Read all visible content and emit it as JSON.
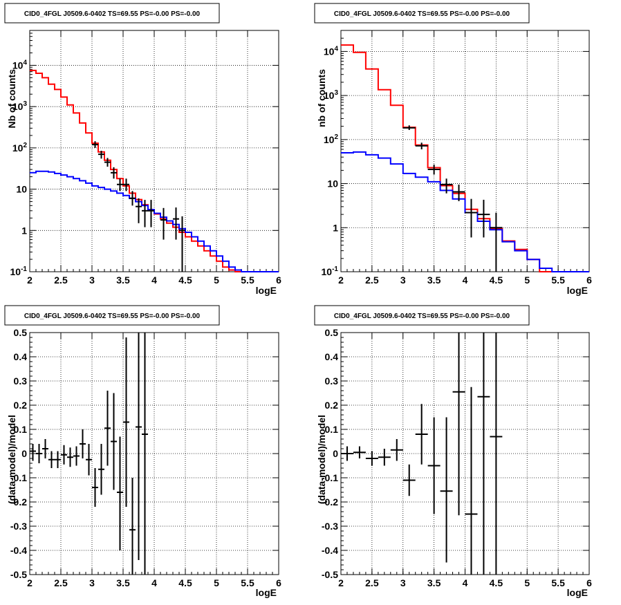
{
  "chart_data": [
    {
      "type": "histogram",
      "title": "CID0_4FGL J0509.6-0402 TS=69.55 PS=-0.00 PS=-0.00",
      "xlabel": "logE",
      "ylabel": "Nb of counts",
      "xlim": [
        2,
        6
      ],
      "ylim": [
        0.1,
        70000
      ],
      "yscale": "log",
      "grid": true,
      "x_ticks": [
        "2",
        "2.5",
        "3",
        "3.5",
        "4",
        "4.5",
        "5",
        "5.5",
        "6"
      ],
      "y_ticks": [
        {
          "v": 0.1,
          "label": "10^-1"
        },
        {
          "v": 1,
          "label": "1"
        },
        {
          "v": 10,
          "label": "10"
        },
        {
          "v": 100,
          "label": "10^2"
        },
        {
          "v": 1000,
          "label": "10^3"
        },
        {
          "v": 10000,
          "label": "10^4"
        }
      ],
      "bin_edges": [
        2.0,
        2.1,
        2.2,
        2.3,
        2.4,
        2.5,
        2.6,
        2.7,
        2.8,
        2.9,
        3.0,
        3.1,
        3.2,
        3.3,
        3.4,
        3.5,
        3.6,
        3.7,
        3.8,
        3.9,
        4.0,
        4.1,
        4.2,
        4.3,
        4.4,
        4.5,
        4.6,
        4.7,
        4.8,
        4.9,
        5.0,
        5.1,
        5.2,
        5.3,
        5.4,
        5.5,
        5.6,
        5.7,
        5.8,
        5.9,
        6.0
      ],
      "series": [
        {
          "color": "#ff0000",
          "values": [
            7500,
            6400,
            5000,
            3500,
            2600,
            1700,
            1100,
            700,
            400,
            230,
            130,
            80,
            50,
            30,
            18,
            12,
            8,
            5.6,
            4.2,
            3.2,
            2.5,
            1.9,
            1.5,
            1.2,
            0.9,
            0.7,
            0.55,
            0.42,
            0.32,
            0.24,
            0.18,
            0.13,
            0.11,
            0.1,
            0.1,
            0.1,
            0.1,
            0.1,
            0.1,
            0.1
          ]
        },
        {
          "color": "#0000ff",
          "values": [
            25,
            27,
            27,
            26,
            24,
            22,
            20,
            18,
            16,
            14,
            12,
            11,
            10,
            9,
            8,
            7,
            6,
            5,
            4,
            3.2,
            2.6,
            2.1,
            1.7,
            1.4,
            1.1,
            0.9,
            0.7,
            0.55,
            0.42,
            0.32,
            0.24,
            0.18,
            0.13,
            0.11,
            0.1,
            0.1,
            0.1,
            0.1,
            0.1,
            0.1
          ]
        }
      ],
      "points": [
        {
          "x": 3.05,
          "y": 120,
          "lo": 100,
          "hi": 145
        },
        {
          "x": 3.15,
          "y": 70,
          "lo": 55,
          "hi": 85
        },
        {
          "x": 3.25,
          "y": 45,
          "lo": 35,
          "hi": 57
        },
        {
          "x": 3.35,
          "y": 25,
          "lo": 18,
          "hi": 34
        },
        {
          "x": 3.45,
          "y": 13,
          "lo": 9,
          "hi": 18
        },
        {
          "x": 3.55,
          "y": 13,
          "lo": 9,
          "hi": 18
        },
        {
          "x": 3.65,
          "y": 6,
          "lo": 4,
          "hi": 9
        },
        {
          "x": 3.75,
          "y": 3.8,
          "lo": 1.5,
          "hi": 6
        },
        {
          "x": 3.85,
          "y": 3,
          "lo": 1.2,
          "hi": 5.5
        },
        {
          "x": 3.95,
          "y": 3,
          "lo": 1.2,
          "hi": 5.5
        },
        {
          "x": 4.15,
          "y": 1.8,
          "lo": 0.6,
          "hi": 3.5
        },
        {
          "x": 4.35,
          "y": 1.9,
          "lo": 0.6,
          "hi": 3.6
        },
        {
          "x": 4.45,
          "y": 1.0,
          "lo": 0.1,
          "hi": 2.2
        }
      ]
    },
    {
      "type": "histogram",
      "title": "CID0_4FGL J0509.6-0402 TS=69.55 PS=-0.00 PS=-0.00",
      "xlabel": "logE",
      "ylabel": "nb of counts",
      "xlim": [
        2,
        6
      ],
      "ylim": [
        0.1,
        30000
      ],
      "yscale": "log",
      "grid": true,
      "x_ticks": [
        "2",
        "2.5",
        "3",
        "3.5",
        "4",
        "4.5",
        "5",
        "5.5",
        "6"
      ],
      "y_ticks": [
        {
          "v": 0.1,
          "label": "10^-1"
        },
        {
          "v": 1,
          "label": "1"
        },
        {
          "v": 10,
          "label": "10"
        },
        {
          "v": 100,
          "label": "10^2"
        },
        {
          "v": 1000,
          "label": "10^3"
        },
        {
          "v": 10000,
          "label": "10^4"
        }
      ],
      "bin_edges": [
        2.0,
        2.2,
        2.4,
        2.6,
        2.8,
        3.0,
        3.2,
        3.4,
        3.6,
        3.8,
        4.0,
        4.2,
        4.4,
        4.6,
        4.8,
        5.0,
        5.2,
        5.4,
        5.6,
        5.8,
        6.0
      ],
      "series": [
        {
          "color": "#ff0000",
          "values": [
            14000,
            9500,
            4000,
            1350,
            600,
            190,
            75,
            23,
            9,
            6,
            2.6,
            1.6,
            0.95,
            0.5,
            0.32,
            0.19,
            0.1,
            0.1,
            0.1,
            0.1
          ]
        },
        {
          "color": "#0000ff",
          "values": [
            50,
            52,
            45,
            38,
            28,
            17,
            14,
            11,
            7,
            4.5,
            2.2,
            1.4,
            0.9,
            0.48,
            0.3,
            0.19,
            0.12,
            0.1,
            0.1,
            0.1
          ]
        }
      ],
      "points": [
        {
          "x": 3.1,
          "y": 185,
          "lo": 165,
          "hi": 210
        },
        {
          "x": 3.3,
          "y": 72,
          "lo": 60,
          "hi": 85
        },
        {
          "x": 3.5,
          "y": 21,
          "lo": 16,
          "hi": 27
        },
        {
          "x": 3.7,
          "y": 9.5,
          "lo": 6,
          "hi": 13
        },
        {
          "x": 3.9,
          "y": 6.5,
          "lo": 4,
          "hi": 9.5
        },
        {
          "x": 4.1,
          "y": 2.2,
          "lo": 0.6,
          "hi": 4.5
        },
        {
          "x": 4.3,
          "y": 2.0,
          "lo": 0.6,
          "hi": 4.3
        },
        {
          "x": 4.5,
          "y": 1.0,
          "lo": 0.1,
          "hi": 2.2
        }
      ]
    },
    {
      "type": "scatter",
      "title": "CID0_4FGL J0509.6-0402 TS=69.55 PS=-0.00 PS=-0.00",
      "xlabel": "logE",
      "ylabel": "(data-model)/model",
      "xlim": [
        2,
        6
      ],
      "ylim": [
        -0.5,
        0.5
      ],
      "yscale": "linear",
      "grid": true,
      "x_ticks": [
        "2",
        "2.5",
        "3",
        "3.5",
        "4",
        "4.5",
        "5",
        "5.5",
        "6"
      ],
      "y_ticks": [
        {
          "v": -0.5,
          "label": "-0.5"
        },
        {
          "v": -0.4,
          "label": "-0.4"
        },
        {
          "v": -0.3,
          "label": "-0.3"
        },
        {
          "v": -0.2,
          "label": "-0.2"
        },
        {
          "v": -0.1,
          "label": "-0.1"
        },
        {
          "v": 0,
          "label": "0"
        },
        {
          "v": 0.1,
          "label": "0.1"
        },
        {
          "v": 0.2,
          "label": "0.2"
        },
        {
          "v": 0.3,
          "label": "0.3"
        },
        {
          "v": 0.4,
          "label": "0.4"
        },
        {
          "v": 0.5,
          "label": "0.5"
        }
      ],
      "xerr": 0.05,
      "points": [
        {
          "x": 2.05,
          "y": 0.01,
          "lo": -0.03,
          "hi": 0.04
        },
        {
          "x": 2.15,
          "y": 0.0,
          "lo": -0.04,
          "hi": 0.04
        },
        {
          "x": 2.25,
          "y": 0.02,
          "lo": -0.02,
          "hi": 0.06
        },
        {
          "x": 2.35,
          "y": -0.025,
          "lo": -0.06,
          "hi": 0.01
        },
        {
          "x": 2.45,
          "y": -0.025,
          "lo": -0.06,
          "hi": 0.01
        },
        {
          "x": 2.55,
          "y": -0.005,
          "lo": -0.045,
          "hi": 0.035
        },
        {
          "x": 2.65,
          "y": -0.015,
          "lo": -0.055,
          "hi": 0.025
        },
        {
          "x": 2.75,
          "y": -0.01,
          "lo": -0.05,
          "hi": 0.03
        },
        {
          "x": 2.85,
          "y": 0.04,
          "lo": -0.02,
          "hi": 0.1
        },
        {
          "x": 2.95,
          "y": -0.025,
          "lo": -0.09,
          "hi": 0.04
        },
        {
          "x": 3.05,
          "y": -0.14,
          "lo": -0.22,
          "hi": -0.06
        },
        {
          "x": 3.15,
          "y": -0.065,
          "lo": -0.17,
          "hi": 0.04
        },
        {
          "x": 3.25,
          "y": 0.105,
          "lo": -0.05,
          "hi": 0.26
        },
        {
          "x": 3.35,
          "y": 0.05,
          "lo": -0.15,
          "hi": 0.25
        },
        {
          "x": 3.45,
          "y": -0.16,
          "lo": -0.4,
          "hi": 0.07
        },
        {
          "x": 3.55,
          "y": 0.13,
          "lo": -0.22,
          "hi": 0.48
        },
        {
          "x": 3.65,
          "y": -0.315,
          "lo": -0.5,
          "hi": -0.1
        },
        {
          "x": 3.75,
          "y": 0.11,
          "lo": -0.44,
          "hi": 0.5
        },
        {
          "x": 3.85,
          "y": 0.08,
          "lo": -0.5,
          "hi": 0.5
        }
      ]
    },
    {
      "type": "scatter",
      "title": "CID0_4FGL J0509.6-0402 TS=69.55 PS=-0.00 PS=-0.00",
      "xlabel": "logE",
      "ylabel": "(data-model)/model",
      "xlim": [
        2,
        6
      ],
      "ylim": [
        -0.5,
        0.5
      ],
      "yscale": "linear",
      "grid": true,
      "x_ticks": [
        "2",
        "2.5",
        "3",
        "3.5",
        "4",
        "4.5",
        "5",
        "5.5",
        "6"
      ],
      "y_ticks": [
        {
          "v": -0.5,
          "label": "-0.5"
        },
        {
          "v": -0.4,
          "label": "-0.4"
        },
        {
          "v": -0.3,
          "label": "-0.3"
        },
        {
          "v": -0.2,
          "label": "-0.2"
        },
        {
          "v": -0.1,
          "label": "-0.1"
        },
        {
          "v": 0,
          "label": "0"
        },
        {
          "v": 0.1,
          "label": "0.1"
        },
        {
          "v": 0.2,
          "label": "0.2"
        },
        {
          "v": 0.3,
          "label": "0.3"
        },
        {
          "v": 0.4,
          "label": "0.4"
        },
        {
          "v": 0.5,
          "label": "0.5"
        }
      ],
      "xerr": 0.1,
      "points": [
        {
          "x": 2.1,
          "y": 0.0,
          "lo": -0.03,
          "hi": 0.03
        },
        {
          "x": 2.3,
          "y": 0.005,
          "lo": -0.02,
          "hi": 0.03
        },
        {
          "x": 2.5,
          "y": -0.02,
          "lo": -0.05,
          "hi": 0.01
        },
        {
          "x": 2.7,
          "y": -0.015,
          "lo": -0.05,
          "hi": 0.02
        },
        {
          "x": 2.9,
          "y": 0.015,
          "lo": -0.03,
          "hi": 0.06
        },
        {
          "x": 3.1,
          "y": -0.11,
          "lo": -0.175,
          "hi": -0.045
        },
        {
          "x": 3.3,
          "y": 0.08,
          "lo": -0.045,
          "hi": 0.205
        },
        {
          "x": 3.5,
          "y": -0.05,
          "lo": -0.25,
          "hi": 0.15
        },
        {
          "x": 3.7,
          "y": -0.155,
          "lo": -0.45,
          "hi": 0.15
        },
        {
          "x": 3.9,
          "y": 0.255,
          "lo": -0.255,
          "hi": 0.5
        },
        {
          "x": 4.1,
          "y": -0.25,
          "lo": -0.5,
          "hi": 0.275
        },
        {
          "x": 4.3,
          "y": 0.235,
          "lo": -0.5,
          "hi": 0.5
        },
        {
          "x": 4.5,
          "y": 0.07,
          "lo": -0.5,
          "hi": 0.5
        }
      ]
    }
  ]
}
